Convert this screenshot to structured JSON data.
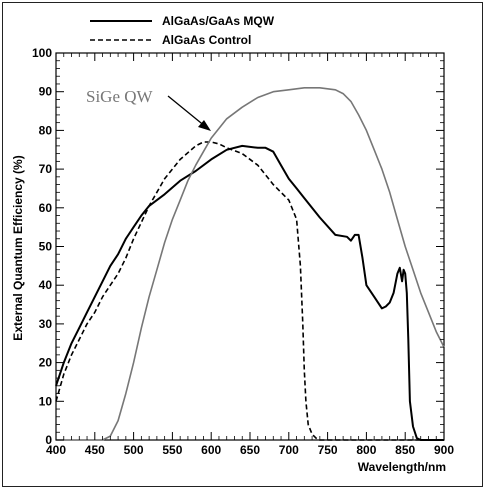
{
  "chart_data": {
    "type": "line",
    "xlabel": "Wavelength/nm",
    "ylabel": "External Quantum Efficiency (%)",
    "xlim": [
      400,
      900
    ],
    "ylim": [
      0,
      100
    ],
    "x_ticks": [
      "400",
      "450",
      "500",
      "550",
      "600",
      "650",
      "700",
      "750",
      "800",
      "850",
      "900"
    ],
    "y_ticks": [
      "0",
      "10",
      "20",
      "30",
      "40",
      "50",
      "60",
      "70",
      "80",
      "90",
      "100"
    ],
    "grid": false,
    "legend": "top-left",
    "annotation": {
      "text": "SiGe QW",
      "target": [
        598,
        79
      ]
    },
    "series": [
      {
        "name": "AlGaAs/GaAs MQW",
        "style": "solid",
        "color": "#000000",
        "x": [
          400,
          410,
          420,
          430,
          440,
          450,
          460,
          470,
          480,
          490,
          500,
          510,
          520,
          540,
          560,
          580,
          600,
          620,
          640,
          660,
          670,
          680,
          690,
          700,
          710,
          720,
          740,
          760,
          775,
          780,
          785,
          790,
          795,
          800,
          810,
          820,
          825,
          830,
          835,
          840,
          843,
          846,
          848,
          850,
          852,
          854,
          856,
          860,
          865,
          870,
          878,
          885,
          890,
          900
        ],
        "y": [
          14,
          20,
          25,
          29,
          33,
          37,
          41,
          45,
          48,
          52,
          55,
          58,
          60.5,
          63.5,
          67,
          69.5,
          72.5,
          75,
          76,
          75.5,
          75.5,
          74.5,
          71,
          67.5,
          65,
          62.5,
          57.5,
          53,
          52.5,
          51.5,
          53,
          53,
          47,
          40,
          37,
          34,
          34.5,
          35.5,
          38,
          43,
          44.5,
          41,
          44,
          43,
          38,
          26,
          10,
          3.5,
          0.5,
          0,
          0,
          0,
          0,
          0
        ]
      },
      {
        "name": "AlGaAs Control",
        "style": "dashed",
        "color": "#000000",
        "x": [
          400,
          410,
          420,
          430,
          440,
          450,
          460,
          470,
          480,
          490,
          500,
          520,
          540,
          560,
          580,
          590,
          600,
          610,
          620,
          640,
          660,
          680,
          700,
          710,
          715,
          718,
          720,
          722,
          725,
          730,
          735,
          740,
          760,
          800,
          850,
          900
        ],
        "y": [
          10,
          17,
          22,
          26,
          30,
          33,
          37,
          40,
          43,
          47,
          52,
          60.5,
          67.5,
          72.5,
          76,
          77,
          77,
          76.5,
          75.5,
          74,
          71,
          66,
          62,
          57,
          45,
          30,
          18,
          10,
          4,
          1.5,
          0.5,
          0,
          0,
          0,
          0,
          0
        ]
      },
      {
        "name": "SiGe QW",
        "style": "solid",
        "color": "#777777",
        "x": [
          400,
          450,
          460,
          470,
          480,
          490,
          500,
          510,
          520,
          530,
          540,
          550,
          560,
          570,
          580,
          590,
          600,
          620,
          640,
          660,
          680,
          700,
          720,
          740,
          760,
          770,
          780,
          790,
          800,
          810,
          820,
          830,
          840,
          850,
          860,
          870,
          880,
          890,
          900
        ],
        "y": [
          0,
          0,
          0,
          1,
          5,
          12,
          20,
          29,
          37,
          44,
          51,
          57,
          62,
          67,
          71,
          74.5,
          78,
          83,
          86,
          88.5,
          90,
          90.5,
          91,
          91,
          90.5,
          89.5,
          87.5,
          84,
          80,
          75,
          70,
          64,
          57,
          50,
          44,
          38,
          33,
          28,
          24
        ]
      }
    ]
  }
}
